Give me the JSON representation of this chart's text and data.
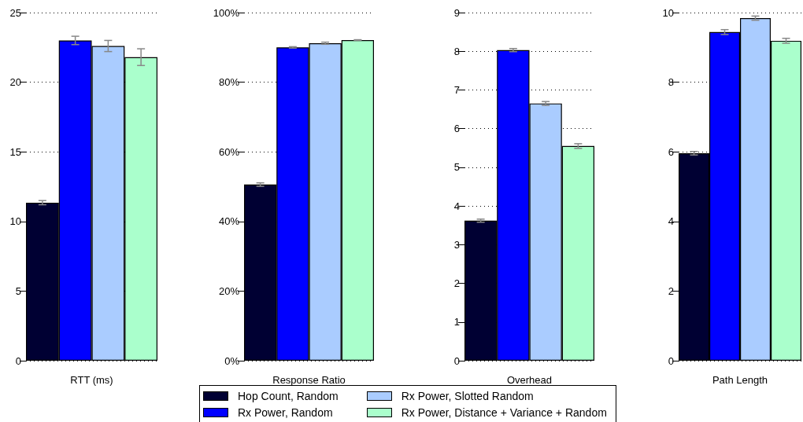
{
  "chart_data": [
    {
      "type": "bar",
      "xlabel": "RTT (ms)",
      "categories": [
        null
      ],
      "ylim": [
        0,
        25
      ],
      "yticks": [
        0,
        5,
        10,
        15,
        20,
        25
      ],
      "grid": "y",
      "tick_labels": "y",
      "legend": "bottom",
      "series": [
        {
          "name": "Hop Count, Random",
          "color": "#000033",
          "values": [
            11.35
          ],
          "errors": [
            0.15
          ]
        },
        {
          "name": "Rx Power, Random",
          "color": "#0000ff",
          "values": [
            23.0
          ],
          "errors": [
            0.3
          ]
        },
        {
          "name": "Rx Power, Slotted Random",
          "color": "#aaccff",
          "values": [
            22.6
          ],
          "errors": [
            0.4
          ]
        },
        {
          "name": "Rx Power, Distance + Variance + Random",
          "color": "#aaffcc",
          "values": [
            21.8
          ],
          "errors": [
            0.6
          ]
        }
      ]
    },
    {
      "type": "bar",
      "xlabel": "Response Ratio",
      "categories": [
        null
      ],
      "ylim": [
        0,
        100
      ],
      "yticks": [
        {
          "value": 0,
          "label": "0%"
        },
        {
          "value": 20,
          "label": "20%"
        },
        {
          "value": 40,
          "label": "40%"
        },
        {
          "value": 60,
          "label": "60%"
        },
        {
          "value": 80,
          "label": "80%"
        },
        {
          "value": 100,
          "label": "100%"
        }
      ],
      "grid": "y",
      "tick_labels": "y",
      "series": [
        {
          "color": "#000033",
          "values": [
            50.6
          ],
          "errors": [
            0.5
          ]
        },
        {
          "color": "#0000ff",
          "values": [
            90.0
          ],
          "errors": [
            0.2
          ]
        },
        {
          "color": "#aaccff",
          "values": [
            91.2
          ],
          "errors": [
            0.3
          ]
        },
        {
          "color": "#aaffcc",
          "values": [
            92.1
          ],
          "errors": [
            0.1
          ]
        }
      ]
    },
    {
      "type": "bar",
      "xlabel": "Overhead",
      "categories": [
        null
      ],
      "ylim": [
        0,
        9
      ],
      "yticks": [
        0,
        1,
        2,
        3,
        4,
        5,
        6,
        7,
        8,
        9
      ],
      "grid": "y",
      "tick_labels": "y",
      "series": [
        {
          "color": "#000033",
          "values": [
            3.62
          ],
          "errors": [
            0.04
          ]
        },
        {
          "color": "#0000ff",
          "values": [
            8.03
          ],
          "errors": [
            0.04
          ]
        },
        {
          "color": "#aaccff",
          "values": [
            6.65
          ],
          "errors": [
            0.05
          ]
        },
        {
          "color": "#aaffcc",
          "values": [
            5.55
          ],
          "errors": [
            0.06
          ]
        }
      ]
    },
    {
      "type": "bar",
      "xlabel": "Path Length",
      "categories": [
        null
      ],
      "ylim": [
        0,
        10
      ],
      "yticks": [
        0,
        2,
        4,
        6,
        8,
        10
      ],
      "grid": "y",
      "tick_labels": "y",
      "series": [
        {
          "color": "#000033",
          "values": [
            5.96
          ],
          "errors": [
            0.05
          ]
        },
        {
          "color": "#0000ff",
          "values": [
            9.44
          ],
          "errors": [
            0.07
          ]
        },
        {
          "color": "#aaccff",
          "values": [
            9.84
          ],
          "errors": [
            0.06
          ]
        },
        {
          "color": "#aaffcc",
          "values": [
            9.19
          ],
          "errors": [
            0.07
          ]
        }
      ]
    }
  ]
}
